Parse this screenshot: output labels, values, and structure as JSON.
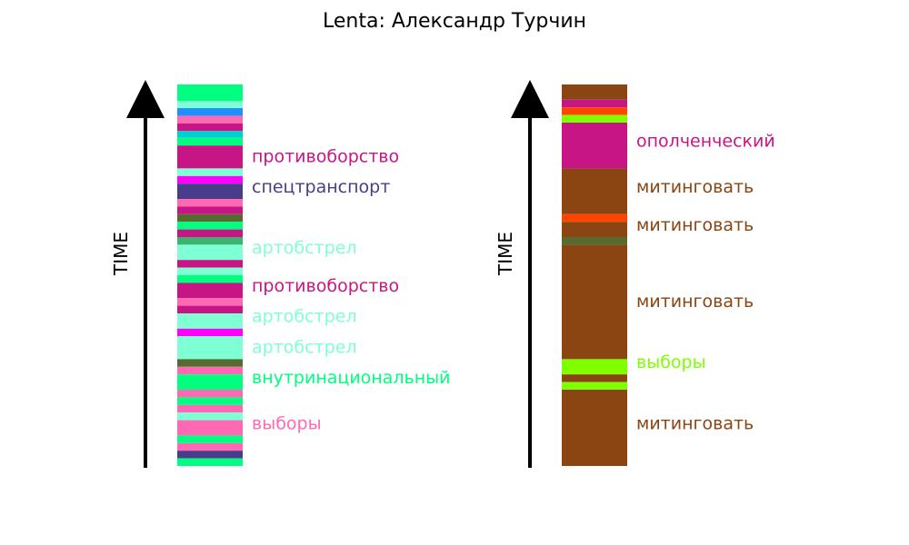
{
  "title": "Lenta: Александр Турчин",
  "chart_data": [
    {
      "type": "table",
      "ylabel": "TIME",
      "time_range": [
        0,
        1
      ],
      "segments": [
        {
          "start": 0.957,
          "end": 1.0,
          "color": "#00FF7F"
        },
        {
          "start": 0.938,
          "end": 0.957,
          "color": "#7FFFD4"
        },
        {
          "start": 0.918,
          "end": 0.938,
          "color": "#1E90FF"
        },
        {
          "start": 0.898,
          "end": 0.918,
          "color": "#FF69B4"
        },
        {
          "start": 0.878,
          "end": 0.898,
          "color": "#C71585"
        },
        {
          "start": 0.86,
          "end": 0.878,
          "color": "#00CED1"
        },
        {
          "start": 0.84,
          "end": 0.86,
          "color": "#00FF7F"
        },
        {
          "start": 0.78,
          "end": 0.84,
          "color": "#C71585"
        },
        {
          "start": 0.76,
          "end": 0.78,
          "color": "#7FFFD4"
        },
        {
          "start": 0.74,
          "end": 0.76,
          "color": "#FF00FF"
        },
        {
          "start": 0.7,
          "end": 0.74,
          "color": "#483D8B"
        },
        {
          "start": 0.68,
          "end": 0.7,
          "color": "#FF69B4"
        },
        {
          "start": 0.66,
          "end": 0.68,
          "color": "#C71585"
        },
        {
          "start": 0.64,
          "end": 0.66,
          "color": "#556B2F"
        },
        {
          "start": 0.62,
          "end": 0.64,
          "color": "#00FF7F"
        },
        {
          "start": 0.6,
          "end": 0.62,
          "color": "#C71585"
        },
        {
          "start": 0.58,
          "end": 0.6,
          "color": "#3CB371"
        },
        {
          "start": 0.54,
          "end": 0.58,
          "color": "#7FFFD4"
        },
        {
          "start": 0.52,
          "end": 0.54,
          "color": "#C71585"
        },
        {
          "start": 0.5,
          "end": 0.52,
          "color": "#7FFFD4"
        },
        {
          "start": 0.48,
          "end": 0.5,
          "color": "#00FF7F"
        },
        {
          "start": 0.44,
          "end": 0.48,
          "color": "#C71585"
        },
        {
          "start": 0.42,
          "end": 0.44,
          "color": "#FF69B4"
        },
        {
          "start": 0.4,
          "end": 0.42,
          "color": "#C71585"
        },
        {
          "start": 0.36,
          "end": 0.4,
          "color": "#7FFFD4"
        },
        {
          "start": 0.34,
          "end": 0.36,
          "color": "#FF00FF"
        },
        {
          "start": 0.28,
          "end": 0.34,
          "color": "#7FFFD4"
        },
        {
          "start": 0.26,
          "end": 0.28,
          "color": "#556B2F"
        },
        {
          "start": 0.24,
          "end": 0.26,
          "color": "#FF69B4"
        },
        {
          "start": 0.2,
          "end": 0.24,
          "color": "#00FF7F"
        },
        {
          "start": 0.18,
          "end": 0.2,
          "color": "#FF69B4"
        },
        {
          "start": 0.16,
          "end": 0.18,
          "color": "#00FF7F"
        },
        {
          "start": 0.14,
          "end": 0.16,
          "color": "#FF69B4"
        },
        {
          "start": 0.12,
          "end": 0.14,
          "color": "#7FFFD4"
        },
        {
          "start": 0.08,
          "end": 0.12,
          "color": "#FF69B4"
        },
        {
          "start": 0.06,
          "end": 0.08,
          "color": "#00FF7F"
        },
        {
          "start": 0.04,
          "end": 0.06,
          "color": "#FF69B4"
        },
        {
          "start": 0.02,
          "end": 0.04,
          "color": "#483D8B"
        },
        {
          "start": 0.0,
          "end": 0.02,
          "color": "#00FF7F"
        }
      ],
      "labels": [
        {
          "text": "противоборство",
          "time": 0.81,
          "color": "#C71585"
        },
        {
          "text": "спецтранспорт",
          "time": 0.73,
          "color": "#483D8B"
        },
        {
          "text": "артобстрел",
          "time": 0.57,
          "color": "#7FFFD4"
        },
        {
          "text": "противоборство",
          "time": 0.47,
          "color": "#C71585"
        },
        {
          "text": "артобстрел",
          "time": 0.39,
          "color": "#7FFFD4"
        },
        {
          "text": "артобстрел",
          "time": 0.31,
          "color": "#7FFFD4"
        },
        {
          "text": "внутринациональный",
          "time": 0.23,
          "color": "#00FF7F"
        },
        {
          "text": "выборы",
          "time": 0.11,
          "color": "#FF69B4"
        }
      ]
    },
    {
      "type": "table",
      "ylabel": "TIME",
      "time_range": [
        0,
        1
      ],
      "segments": [
        {
          "start": 0.96,
          "end": 1.0,
          "color": "#8B4513"
        },
        {
          "start": 0.94,
          "end": 0.96,
          "color": "#C71585"
        },
        {
          "start": 0.92,
          "end": 0.94,
          "color": "#FF4500"
        },
        {
          "start": 0.9,
          "end": 0.92,
          "color": "#7FFF00"
        },
        {
          "start": 0.78,
          "end": 0.9,
          "color": "#C71585"
        },
        {
          "start": 0.66,
          "end": 0.78,
          "color": "#8B4513"
        },
        {
          "start": 0.64,
          "end": 0.66,
          "color": "#FF4500"
        },
        {
          "start": 0.6,
          "end": 0.64,
          "color": "#8B4513"
        },
        {
          "start": 0.58,
          "end": 0.6,
          "color": "#556B2F"
        },
        {
          "start": 0.28,
          "end": 0.58,
          "color": "#8B4513"
        },
        {
          "start": 0.24,
          "end": 0.28,
          "color": "#7FFF00"
        },
        {
          "start": 0.22,
          "end": 0.24,
          "color": "#8B4513"
        },
        {
          "start": 0.2,
          "end": 0.22,
          "color": "#7FFF00"
        },
        {
          "start": 0.0,
          "end": 0.2,
          "color": "#8B4513"
        }
      ],
      "labels": [
        {
          "text": "ополченческий",
          "time": 0.85,
          "color": "#C71585"
        },
        {
          "text": "митинговать",
          "time": 0.73,
          "color": "#8B4513"
        },
        {
          "text": "митинговать",
          "time": 0.63,
          "color": "#8B4513"
        },
        {
          "text": "митинговать",
          "time": 0.43,
          "color": "#8B4513"
        },
        {
          "text": "выборы",
          "time": 0.27,
          "color": "#7FFF00"
        },
        {
          "text": "митинговать",
          "time": 0.11,
          "color": "#8B4513"
        }
      ]
    }
  ]
}
